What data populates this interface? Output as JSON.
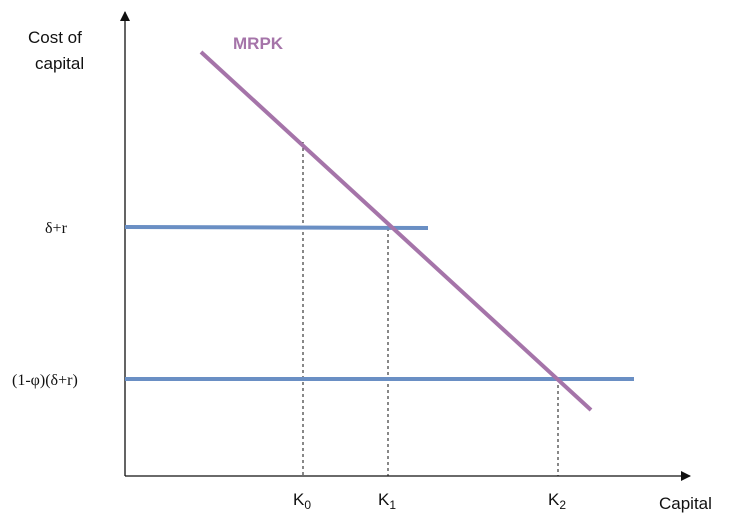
{
  "y_axis_label": {
    "line1": "Cost of",
    "line2": "capital"
  },
  "x_axis_label": "Capital",
  "curve_label": "MRPK",
  "levels": {
    "high": "δ+r",
    "low": "(1-φ)(δ+r)"
  },
  "ticks": {
    "k0": {
      "base": "K",
      "sub": "0"
    },
    "k1": {
      "base": "K",
      "sub": "1"
    },
    "k2": {
      "base": "K",
      "sub": "2"
    }
  },
  "colors": {
    "mrpk": "#a574a9",
    "cost_lines": "#6a8fc4",
    "axes": "#111111"
  }
}
